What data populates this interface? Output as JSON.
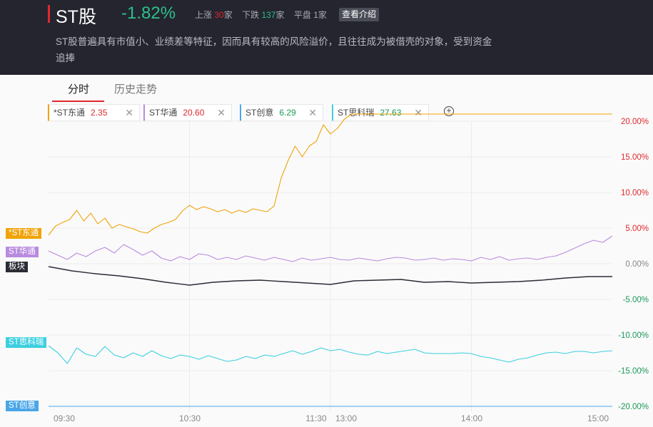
{
  "header": {
    "title": "ST股",
    "change_pct": "-1.82%",
    "up_label": "上涨",
    "up_count": "30",
    "down_label": "下跌",
    "down_count": "137",
    "flat_label": "平盘",
    "flat_count": "1",
    "unit": "家",
    "intro_button": "查看介绍",
    "description": "ST股普遍具有市值小、业绩差等特征，因而具有较高的风险溢价，且往往成为被借壳的对象，受到资金追捧"
  },
  "tabs": [
    {
      "label": "分时",
      "active": true
    },
    {
      "label": "历史走势",
      "active": false
    }
  ],
  "legend": [
    {
      "name": "*ST东通",
      "value": "2.35",
      "color": "#f0a30a",
      "value_color": "#e0282e"
    },
    {
      "name": "ST华通",
      "value": "20.60",
      "color": "#b98be0",
      "value_color": "#e0282e"
    },
    {
      "name": "ST创意",
      "value": "6.29",
      "color": "#4aa6e8",
      "value_color": "#1a9a5a"
    },
    {
      "name": "ST思科瑞",
      "value": "27.63",
      "color": "#3ccfe0",
      "value_color": "#1a9a5a"
    }
  ],
  "side_labels": [
    {
      "text": "*ST东通",
      "color": "#f0a30a"
    },
    {
      "text": "ST华通",
      "color": "#b98be0"
    },
    {
      "text": "板块",
      "color": "#2a2c35"
    },
    {
      "text": "ST思科瑞",
      "color": "#3ccfe0"
    },
    {
      "text": "ST创意",
      "color": "#4aa6e8"
    }
  ],
  "chart_data": {
    "type": "line",
    "x_tick_labels": [
      "09:30",
      "10:30",
      "11:30",
      "13:00",
      "14:00",
      "15:00"
    ],
    "y_ticks": [
      20,
      15,
      10,
      5,
      0,
      -5,
      -10,
      -15,
      -20
    ],
    "y_tick_labels": [
      "20.00%",
      "15.00%",
      "10.00%",
      "5.00%",
      "0.00%",
      "-5.00%",
      "-10.00%",
      "-15.00%",
      "-20.00%"
    ],
    "ylim": [
      -20,
      21
    ],
    "xlim_minutes": [
      0,
      240
    ],
    "grid": true,
    "colors": {
      "up": "#e0282e",
      "zero": "#888888",
      "down": "#1a9a5a"
    },
    "series": [
      {
        "name": "*ST东通",
        "color": "#f0a30a",
        "x": [
          0,
          3,
          6,
          9,
          12,
          15,
          18,
          21,
          24,
          27,
          30,
          33,
          36,
          39,
          42,
          45,
          48,
          51,
          54,
          57,
          60,
          63,
          66,
          69,
          72,
          75,
          78,
          81,
          84,
          87,
          90,
          93,
          96,
          99,
          102,
          105,
          108,
          111,
          114,
          117,
          120,
          123,
          126,
          129,
          132,
          135,
          138,
          141,
          144,
          147,
          150,
          153,
          156,
          159,
          162,
          165,
          168,
          171,
          174,
          177,
          180,
          183,
          186,
          189,
          192,
          195,
          198,
          201,
          204,
          207,
          210,
          213,
          216,
          219,
          222,
          225,
          228,
          231,
          234,
          237,
          240
        ],
        "y": [
          4.0,
          5.3,
          5.8,
          6.2,
          7.5,
          6.0,
          7.1,
          5.6,
          6.4,
          5.0,
          5.5,
          5.2,
          4.9,
          4.5,
          4.3,
          5.0,
          5.5,
          5.8,
          6.2,
          7.4,
          8.2,
          7.6,
          8.0,
          7.7,
          7.3,
          7.6,
          7.1,
          7.5,
          7.2,
          7.7,
          7.5,
          7.3,
          8.1,
          12.0,
          14.5,
          16.5,
          15.0,
          16.5,
          17.2,
          19.5,
          18.2,
          19.0,
          20.3,
          21.0,
          21.0,
          21.0,
          21.0,
          21.0,
          21.0,
          21.0,
          21.0,
          21.0,
          21.0,
          21.0,
          21.0,
          21.0,
          21.0,
          21.0,
          21.0,
          21.0,
          21.0,
          21.0,
          21.0,
          21.0,
          21.0,
          21.0,
          21.0,
          21.0,
          21.0,
          21.0,
          21.0,
          21.0,
          21.0,
          21.0,
          21.0,
          21.0,
          21.0,
          21.0,
          21.0,
          21.0,
          21.0
        ]
      },
      {
        "name": "ST华通",
        "color": "#b98be0",
        "x": [
          0,
          4,
          8,
          12,
          16,
          20,
          24,
          28,
          32,
          36,
          40,
          44,
          48,
          52,
          56,
          60,
          64,
          68,
          72,
          76,
          80,
          84,
          88,
          92,
          96,
          100,
          104,
          108,
          112,
          116,
          120,
          124,
          128,
          132,
          136,
          140,
          144,
          148,
          152,
          156,
          160,
          164,
          168,
          172,
          176,
          180,
          184,
          188,
          192,
          196,
          200,
          204,
          208,
          212,
          216,
          220,
          224,
          228,
          232,
          236,
          240
        ],
        "y": [
          1.8,
          1.2,
          0.6,
          1.5,
          1.0,
          1.8,
          2.3,
          1.5,
          2.7,
          2.0,
          1.2,
          1.8,
          0.8,
          0.4,
          1.0,
          0.6,
          1.4,
          1.2,
          0.6,
          0.9,
          0.6,
          1.1,
          0.8,
          0.5,
          0.9,
          0.6,
          0.3,
          0.8,
          0.5,
          0.7,
          0.9,
          0.6,
          0.5,
          0.8,
          0.6,
          0.4,
          0.7,
          0.9,
          0.8,
          0.5,
          0.6,
          0.8,
          0.5,
          0.7,
          0.6,
          0.4,
          0.9,
          0.6,
          1.0,
          0.5,
          0.7,
          0.8,
          0.6,
          0.9,
          1.1,
          1.6,
          2.2,
          2.8,
          3.3,
          3.0,
          3.9
        ]
      },
      {
        "name": "板块",
        "color": "#2a2c35",
        "x": [
          0,
          10,
          20,
          30,
          40,
          50,
          60,
          70,
          80,
          90,
          100,
          110,
          120,
          130,
          140,
          150,
          160,
          170,
          180,
          190,
          200,
          210,
          220,
          230,
          240
        ],
        "y": [
          -0.4,
          -1.0,
          -1.4,
          -1.7,
          -2.1,
          -2.6,
          -3.0,
          -2.6,
          -2.4,
          -2.3,
          -2.5,
          -2.7,
          -2.9,
          -2.4,
          -2.3,
          -2.2,
          -2.6,
          -2.5,
          -2.7,
          -2.6,
          -2.5,
          -2.3,
          -2.0,
          -1.8,
          -1.8
        ]
      },
      {
        "name": "ST思科瑞",
        "color": "#3ccfe0",
        "x": [
          0,
          4,
          8,
          12,
          16,
          20,
          24,
          28,
          32,
          36,
          40,
          44,
          48,
          52,
          56,
          60,
          64,
          68,
          72,
          76,
          80,
          84,
          88,
          92,
          96,
          100,
          104,
          108,
          112,
          116,
          120,
          124,
          128,
          132,
          136,
          140,
          144,
          148,
          152,
          156,
          160,
          164,
          168,
          172,
          176,
          180,
          184,
          188,
          192,
          196,
          200,
          204,
          208,
          212,
          216,
          220,
          224,
          228,
          232,
          236,
          240
        ],
        "y": [
          -11.5,
          -12.5,
          -14.0,
          -11.8,
          -12.7,
          -13.0,
          -11.6,
          -12.8,
          -13.2,
          -12.5,
          -13.0,
          -12.2,
          -12.9,
          -13.3,
          -12.8,
          -13.0,
          -13.4,
          -12.9,
          -13.3,
          -13.7,
          -13.5,
          -13.0,
          -13.3,
          -12.8,
          -13.0,
          -12.6,
          -12.2,
          -12.7,
          -12.3,
          -11.8,
          -12.2,
          -12.0,
          -12.4,
          -12.7,
          -12.8,
          -12.3,
          -12.6,
          -12.4,
          -12.2,
          -12.0,
          -12.5,
          -12.6,
          -12.6,
          -12.6,
          -12.5,
          -12.6,
          -13.0,
          -13.2,
          -13.5,
          -13.8,
          -13.4,
          -13.2,
          -12.8,
          -12.5,
          -12.4,
          -12.6,
          -12.3,
          -12.3,
          -12.5,
          -12.3,
          -12.2
        ]
      },
      {
        "name": "ST创意",
        "color": "#4aa6e8",
        "x": [
          0,
          240
        ],
        "y": [
          -20.0,
          -20.0
        ]
      }
    ]
  }
}
